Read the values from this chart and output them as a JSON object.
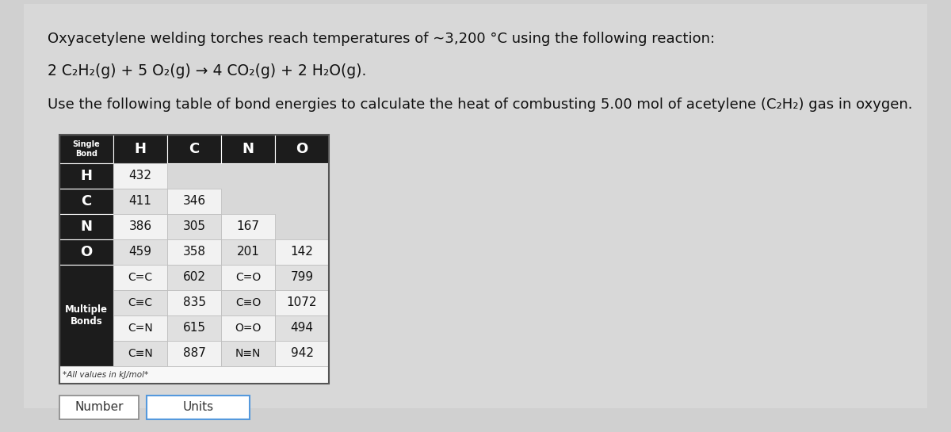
{
  "line1": "Oxyacetylene welding torches reach temperatures of ∼3,200 °C using the following reaction:",
  "line2_parts": [
    {
      "text": "2 C",
      "sub": null
    },
    {
      "text": "2",
      "sub": true
    },
    {
      "text": "H",
      "sub": null
    },
    {
      "text": "2",
      "sub": true
    },
    {
      "text": "(g) + 5 O",
      "sub": null
    },
    {
      "text": "2",
      "sub": true
    },
    {
      "text": "(g) → 4 CO",
      "sub": null
    },
    {
      "text": "2",
      "sub": true
    },
    {
      "text": "(g) + 2 H",
      "sub": null
    },
    {
      "text": "2",
      "sub": true
    },
    {
      "text": "O(g).",
      "sub": null
    }
  ],
  "line3_parts": [
    {
      "text": "Use the following table of bond energies to calculate the heat of combusting 5.00 mol of acetylene (C",
      "sub": null
    },
    {
      "text": "2",
      "sub": true
    },
    {
      "text": "H",
      "sub": null
    },
    {
      "text": "2",
      "sub": true
    },
    {
      "text": ") gas in oxygen.",
      "sub": null
    }
  ],
  "bg_color": "#e0e0e0",
  "header_bg": "#1c1c1c",
  "header_text": "#ffffff",
  "single_bond_headers": [
    "H",
    "C",
    "N",
    "O"
  ],
  "single_bond_rows": [
    {
      "label": "H",
      "values": [
        432,
        null,
        null,
        null
      ]
    },
    {
      "label": "C",
      "values": [
        411,
        346,
        null,
        null
      ]
    },
    {
      "label": "N",
      "values": [
        386,
        305,
        167,
        null
      ]
    },
    {
      "label": "O",
      "values": [
        459,
        358,
        201,
        142
      ]
    }
  ],
  "multiple_bond_rows": [
    {
      "col1": "C=C",
      "val1": "602",
      "col2": "C=O",
      "val2": "799"
    },
    {
      "col1": "C≡C",
      "val1": "835",
      "col2": "C≡O",
      "val2": "1072"
    },
    {
      "col1": "C=N",
      "val1": "615",
      "col2": "O=O",
      "val2": "494"
    },
    {
      "col1": "C≡N",
      "val1": "887",
      "col2": "N≡N",
      "val2": "942"
    }
  ],
  "footnote": "*All values in kJ/mol*",
  "answer_label1": "Number",
  "answer_label2": "Units"
}
